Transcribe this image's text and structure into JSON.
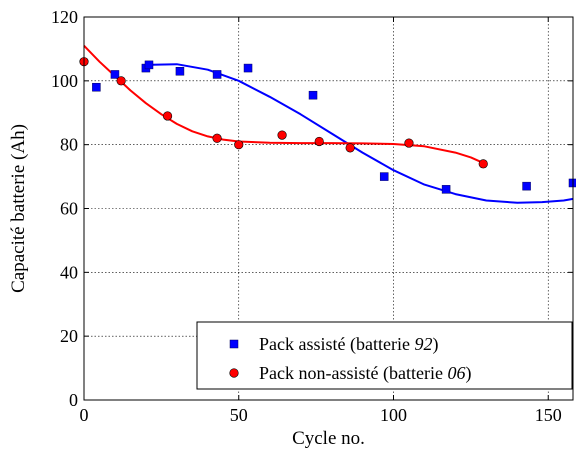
{
  "chart_data": {
    "type": "scatter",
    "xlabel": "Cycle no.",
    "ylabel": "Capacité batterie (Ah)",
    "xlim": [
      0,
      158
    ],
    "ylim": [
      0,
      120
    ],
    "x_ticks": [
      "0",
      "50",
      "100",
      "150"
    ],
    "y_ticks": [
      "0",
      "20",
      "40",
      "60",
      "80",
      "100",
      "120"
    ],
    "x_tick_values": [
      0,
      50,
      100,
      150
    ],
    "y_tick_values": [
      0,
      20,
      40,
      60,
      80,
      100,
      120
    ],
    "grid": true,
    "legend_position": "bottom-right",
    "series": [
      {
        "name": "Pack assisté (batterie 92)",
        "name_prefix": "Pack assisté (batterie ",
        "name_italic": "92",
        "name_suffix": ")",
        "marker": "square",
        "color": "#0000ff",
        "points": [
          [
            4,
            98
          ],
          [
            10,
            102
          ],
          [
            20,
            104
          ],
          [
            21,
            105
          ],
          [
            31,
            103
          ],
          [
            43,
            102
          ],
          [
            53,
            104
          ],
          [
            74,
            95.5
          ],
          [
            97,
            70
          ],
          [
            117,
            66
          ],
          [
            143,
            67
          ],
          [
            158,
            68
          ]
        ],
        "fit": [
          [
            20,
            105
          ],
          [
            30,
            105.2
          ],
          [
            40,
            103.5
          ],
          [
            50,
            100
          ],
          [
            60,
            95
          ],
          [
            70,
            89.5
          ],
          [
            80,
            83.5
          ],
          [
            90,
            77.5
          ],
          [
            100,
            72
          ],
          [
            110,
            67.5
          ],
          [
            120,
            64.5
          ],
          [
            130,
            62.5
          ],
          [
            140,
            61.8
          ],
          [
            148,
            62
          ],
          [
            155,
            62.5
          ],
          [
            158,
            63
          ]
        ]
      },
      {
        "name": "Pack non-assisté (batterie 06)",
        "name_prefix": "Pack non-assisté (batterie ",
        "name_italic": "06",
        "name_suffix": ")",
        "marker": "circle",
        "color": "#ff0000",
        "points": [
          [
            0,
            106
          ],
          [
            12,
            100
          ],
          [
            27,
            89
          ],
          [
            43,
            82
          ],
          [
            50,
            80
          ],
          [
            64,
            83
          ],
          [
            76,
            81
          ],
          [
            86,
            79
          ],
          [
            105,
            80.5
          ],
          [
            129,
            74
          ]
        ],
        "fit": [
          [
            0,
            111
          ],
          [
            5,
            106
          ],
          [
            10,
            101.5
          ],
          [
            15,
            97
          ],
          [
            20,
            93
          ],
          [
            25,
            89.5
          ],
          [
            30,
            86.5
          ],
          [
            35,
            84.2
          ],
          [
            40,
            82.6
          ],
          [
            45,
            81.6
          ],
          [
            50,
            81
          ],
          [
            60,
            80.6
          ],
          [
            70,
            80.5
          ],
          [
            80,
            80.5
          ],
          [
            90,
            80.4
          ],
          [
            100,
            80.2
          ],
          [
            110,
            79.5
          ],
          [
            120,
            77.5
          ],
          [
            125,
            76
          ],
          [
            129,
            74.3
          ]
        ]
      }
    ]
  }
}
